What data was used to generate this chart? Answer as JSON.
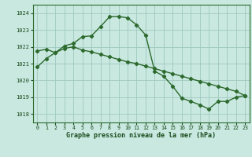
{
  "line1_x": [
    0,
    1,
    2,
    3,
    4,
    5,
    6,
    7,
    8,
    9,
    10,
    11,
    12,
    13,
    14,
    15,
    16,
    17,
    18,
    19,
    20,
    21,
    22,
    23
  ],
  "line1_y": [
    1020.8,
    1021.3,
    1021.65,
    1022.05,
    1022.2,
    1022.6,
    1022.65,
    1023.2,
    1023.78,
    1023.8,
    1023.72,
    1023.3,
    1022.7,
    1020.55,
    1020.25,
    1019.65,
    1018.95,
    1018.75,
    1018.55,
    1018.3,
    1018.75,
    1018.75,
    1019.0,
    1019.1
  ],
  "line2_x": [
    0,
    1,
    2,
    3,
    4,
    5,
    6,
    7,
    8,
    9,
    10,
    11,
    12,
    13,
    14,
    15,
    16,
    17,
    18,
    19,
    20,
    21,
    22,
    23
  ],
  "line2_y": [
    1021.75,
    1021.85,
    1021.65,
    1021.9,
    1022.0,
    1021.8,
    1021.7,
    1021.55,
    1021.4,
    1021.25,
    1021.1,
    1021.0,
    1020.85,
    1020.7,
    1020.55,
    1020.4,
    1020.25,
    1020.1,
    1019.95,
    1019.8,
    1019.65,
    1019.5,
    1019.35,
    1019.1
  ],
  "line_color": "#2d6a2d",
  "bg_color": "#c8e8e0",
  "grid_color": "#a0c8c0",
  "xlabel": "Graphe pression niveau de la mer (hPa)",
  "xlabel_color": "#1a4a1a",
  "tick_color": "#1a4a1a",
  "ylim": [
    1017.5,
    1024.5
  ],
  "xlim": [
    -0.5,
    23.5
  ],
  "yticks": [
    1018,
    1019,
    1020,
    1021,
    1022,
    1023,
    1024
  ],
  "xticks": [
    0,
    1,
    2,
    3,
    4,
    5,
    6,
    7,
    8,
    9,
    10,
    11,
    12,
    13,
    14,
    15,
    16,
    17,
    18,
    19,
    20,
    21,
    22,
    23
  ],
  "marker": "D",
  "markersize": 2.2,
  "linewidth": 1.0
}
